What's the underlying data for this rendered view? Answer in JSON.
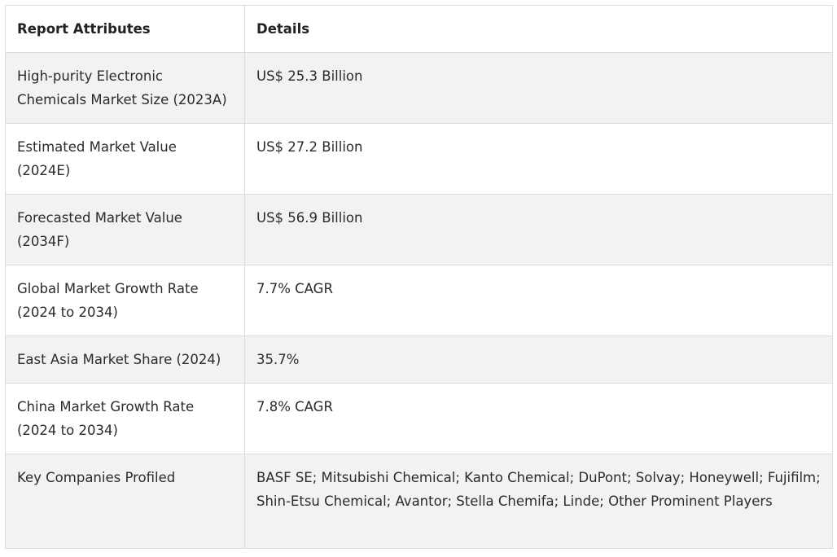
{
  "table": {
    "headers": [
      "Report Attributes",
      "Details"
    ],
    "rows": [
      {
        "attribute": "High-purity Electronic Chemicals Market Size (2023A)",
        "details": "US$ 25.3 Billion"
      },
      {
        "attribute": "Estimated Market Value (2024E)",
        "details": "US$ 27.2 Billion"
      },
      {
        "attribute": "Forecasted Market Value (2034F)",
        "details": "US$ 56.9 Billion"
      },
      {
        "attribute": "Global Market Growth Rate (2024 to 2034)",
        "details": "7.7% CAGR"
      },
      {
        "attribute": "East Asia Market Share (2024)",
        "details": "35.7%"
      },
      {
        "attribute": "China Market Growth Rate (2024 to 2034)",
        "details": "7.8% CAGR"
      },
      {
        "attribute": "Key Companies Profiled",
        "details": "BASF SE; Mitsubishi Chemical; Kanto Chemical; DuPont; Solvay; Honeywell; Fujifilm; Shin-Etsu Chemical; Avantor; Stella Chemifa; Linde; Other Prominent Players"
      }
    ]
  }
}
